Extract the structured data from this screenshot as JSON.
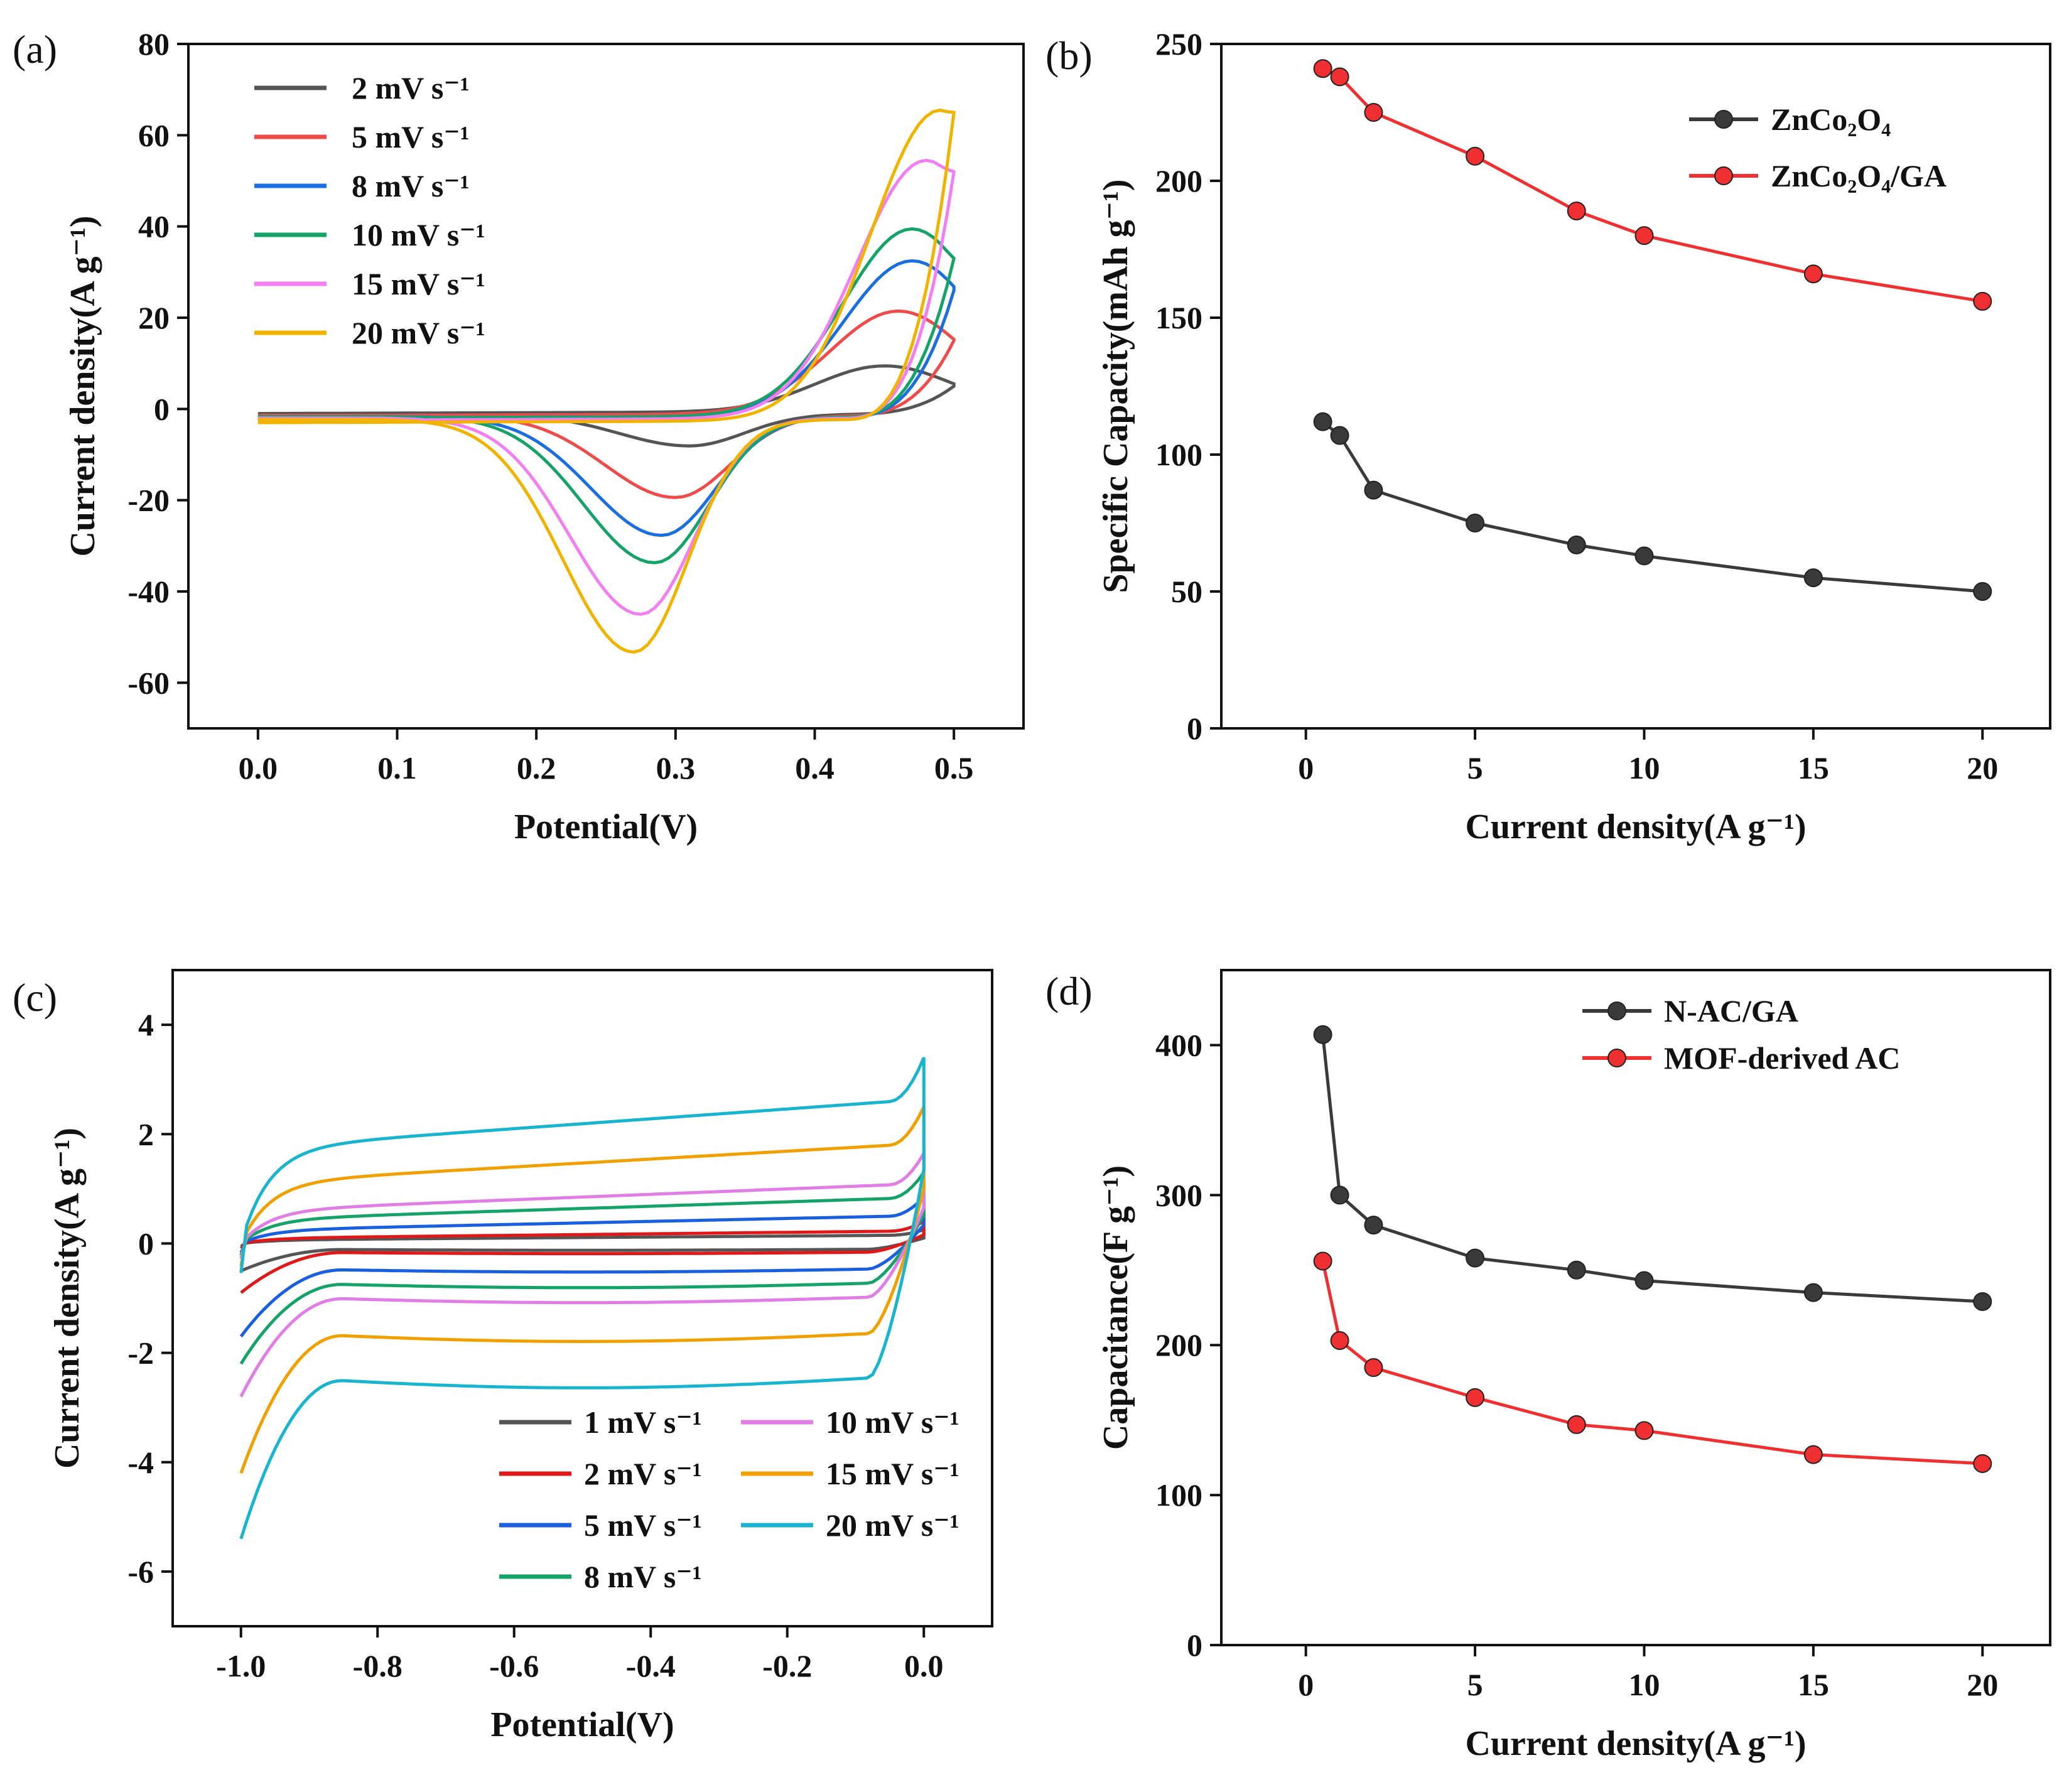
{
  "figure": {
    "panels": [
      {
        "label": "(a)"
      },
      {
        "label": "(b)"
      },
      {
        "label": "(c)"
      },
      {
        "label": "(d)"
      }
    ]
  },
  "chart_data": [
    {
      "panel": "(a)",
      "type": "line",
      "title": "",
      "xlabel": "Potential(V)",
      "ylabel": "Current density(A g⁻¹)",
      "xlim": [
        -0.05,
        0.55
      ],
      "ylim": [
        -70,
        80
      ],
      "xticks": [
        0.0,
        0.1,
        0.2,
        0.3,
        0.4,
        0.5
      ],
      "xtick_labels": [
        "0.0",
        "0.1",
        "0.2",
        "0.3",
        "0.4",
        "0.5"
      ],
      "yticks": [
        -60,
        -40,
        -20,
        0,
        20,
        40,
        60,
        80
      ],
      "ytick_labels": [
        "-60",
        "-40",
        "-20",
        "0",
        "20",
        "40",
        "60",
        "80"
      ],
      "legend_position": "top-left",
      "series": [
        {
          "name": "2 mV s⁻¹",
          "color": "#555555",
          "peak_anodic": [
            0.45,
            9
          ],
          "peak_cathodic": [
            0.31,
            -7
          ],
          "vertex_current": 5,
          "start_current": -1
        },
        {
          "name": "5 mV s⁻¹",
          "color": "#f04b4b",
          "peak_anodic": [
            0.46,
            21
          ],
          "peak_cathodic": [
            0.3,
            -18
          ],
          "vertex_current": 15,
          "start_current": -1.5
        },
        {
          "name": "8 mV s⁻¹",
          "color": "#1a6ee0",
          "peak_anodic": [
            0.47,
            32
          ],
          "peak_cathodic": [
            0.29,
            -26
          ],
          "vertex_current": 26,
          "start_current": -2
        },
        {
          "name": "10 mV s⁻¹",
          "color": "#16a36a",
          "peak_anodic": [
            0.47,
            39
          ],
          "peak_cathodic": [
            0.285,
            -32
          ],
          "vertex_current": 33,
          "start_current": -2
        },
        {
          "name": "15 mV s⁻¹",
          "color": "#f27ef2",
          "peak_anodic": [
            0.48,
            54
          ],
          "peak_cathodic": [
            0.275,
            -43
          ],
          "vertex_current": 52,
          "start_current": -2.5
        },
        {
          "name": "20 mV s⁻¹",
          "color": "#f0b400",
          "peak_anodic": [
            0.49,
            65
          ],
          "peak_cathodic": [
            0.27,
            -51
          ],
          "vertex_current": 65,
          "start_current": -3
        }
      ]
    },
    {
      "panel": "(b)",
      "type": "line",
      "title": "",
      "xlabel": "Current density(A g⁻¹)",
      "ylabel": "Specific Capacity(mAh g⁻¹)",
      "xlim": [
        -2.5,
        22
      ],
      "ylim": [
        0,
        250
      ],
      "xticks": [
        0,
        5,
        10,
        15,
        20
      ],
      "xtick_labels": [
        "0",
        "5",
        "10",
        "15",
        "20"
      ],
      "yticks": [
        0,
        50,
        100,
        150,
        200,
        250
      ],
      "ytick_labels": [
        "0",
        "50",
        "100",
        "150",
        "200",
        "250"
      ],
      "legend_position": "top-right",
      "x": [
        0.5,
        1,
        2,
        5,
        8,
        10,
        15,
        20
      ],
      "series": [
        {
          "name": "ZnCo₂O₄",
          "color": "#3a3a3a",
          "values": [
            112,
            107,
            87,
            75,
            67,
            63,
            55,
            50
          ]
        },
        {
          "name": "ZnCo₂O₄/GA",
          "color": "#f03030",
          "values": [
            241,
            238,
            225,
            209,
            189,
            180,
            166,
            156
          ]
        }
      ]
    },
    {
      "panel": "(c)",
      "type": "line",
      "title": "",
      "xlabel": "Potential(V)",
      "ylabel": "Current density(A g⁻¹)",
      "xlim": [
        -1.1,
        0.1
      ],
      "ylim": [
        -7,
        5
      ],
      "xticks": [
        -1.0,
        -0.8,
        -0.6,
        -0.4,
        -0.2,
        0.0
      ],
      "xtick_labels": [
        "-1.0",
        "-0.8",
        "-0.6",
        "-0.4",
        "-0.2",
        "0.0"
      ],
      "yticks": [
        -6,
        -4,
        -2,
        0,
        2,
        4
      ],
      "ytick_labels": [
        "-6",
        "-4",
        "-2",
        "0",
        "2",
        "4"
      ],
      "legend_position": "bottom-right",
      "series": [
        {
          "name": "1 mV s⁻¹",
          "color": "#555555",
          "upper": 0.1,
          "lower": -0.1,
          "slope": 0.1,
          "tip": 0.25,
          "start": -0.5
        },
        {
          "name": "2 mV s⁻¹",
          "color": "#e01818",
          "upper": 0.15,
          "lower": -0.15,
          "slope": 0.15,
          "tip": 0.4,
          "start": -0.9
        },
        {
          "name": "5 mV s⁻¹",
          "color": "#1a5fe0",
          "upper": 0.35,
          "lower": -0.45,
          "slope": 0.3,
          "tip": 0.85,
          "start": -1.7
        },
        {
          "name": "8 mV s⁻¹",
          "color": "#16a36a",
          "upper": 0.6,
          "lower": -0.7,
          "slope": 0.45,
          "tip": 1.3,
          "start": -2.2
        },
        {
          "name": "10 mV s⁻¹",
          "color": "#e07ee6",
          "upper": 0.8,
          "lower": -0.95,
          "slope": 0.55,
          "tip": 1.65,
          "start": -2.8
        },
        {
          "name": "15 mV s⁻¹",
          "color": "#f0a000",
          "upper": 1.4,
          "lower": -1.6,
          "slope": 0.8,
          "tip": 2.5,
          "start": -4.2
        },
        {
          "name": "20 mV s⁻¹",
          "color": "#18b4d0",
          "upper": 2.1,
          "lower": -2.4,
          "slope": 1.0,
          "tip": 3.4,
          "start": -5.4
        }
      ]
    },
    {
      "panel": "(d)",
      "type": "line",
      "title": "",
      "xlabel": "Current density(A g⁻¹)",
      "ylabel": "Capacitance(F g⁻¹)",
      "xlim": [
        -2.5,
        22
      ],
      "ylim": [
        0,
        450
      ],
      "xticks": [
        0,
        5,
        10,
        15,
        20
      ],
      "xtick_labels": [
        "0",
        "5",
        "10",
        "15",
        "20"
      ],
      "yticks": [
        0,
        100,
        200,
        300,
        400
      ],
      "ytick_labels": [
        "0",
        "100",
        "200",
        "300",
        "400"
      ],
      "legend_position": "top-right",
      "x": [
        0.5,
        1,
        2,
        5,
        8,
        10,
        15,
        20
      ],
      "series": [
        {
          "name": "N-AC/GA",
          "color": "#3a3a3a",
          "values": [
            407,
            300,
            280,
            258,
            250,
            243,
            235,
            229
          ]
        },
        {
          "name": "MOF-derived AC",
          "color": "#f03030",
          "values": [
            256,
            203,
            185,
            165,
            147,
            143,
            127,
            121
          ]
        }
      ]
    }
  ]
}
